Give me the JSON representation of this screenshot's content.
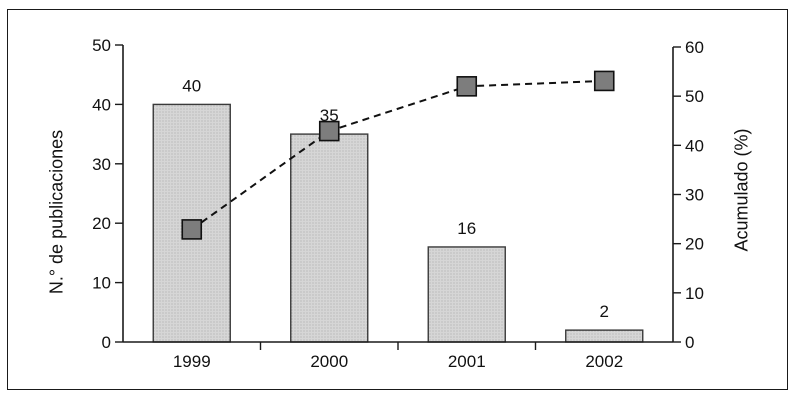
{
  "figure": {
    "background": "#ffffff",
    "frame_color": "#1a1a1a"
  },
  "chart_data": {
    "type": "bar",
    "subtype": "pareto-combo (bars + dashed cumulative line)",
    "title": "",
    "categories": [
      "1999",
      "2000",
      "2001",
      "2002"
    ],
    "series": [
      {
        "name": "N.° de publicaciones",
        "type": "bar",
        "axis": "left",
        "values": [
          40,
          35,
          16,
          2
        ],
        "data_labels": [
          "40",
          "35",
          "16",
          "2"
        ],
        "bar_fill": "#d6d6d6",
        "bar_dot": "#ababab",
        "bar_border": "#3a3a3a"
      },
      {
        "name": "Acumulado (%)",
        "type": "line",
        "axis": "right",
        "values": [
          22.9,
          42.9,
          52.0,
          53.1
        ],
        "line_style": "dashed",
        "line_color": "#111111",
        "marker": "square",
        "marker_fill": "#7d7d7d",
        "marker_border": "#111111"
      }
    ],
    "left_axis": {
      "label": "N.° de publicaciones",
      "min": 0,
      "max": 50,
      "ticks": [
        0,
        10,
        20,
        30,
        40,
        50
      ]
    },
    "right_axis": {
      "label": "Acumulado (%)",
      "min": 0,
      "max": 60,
      "ticks": [
        0,
        10,
        20,
        30,
        40,
        50,
        60
      ]
    },
    "x_axis": {
      "tick_marks_between_categories": true
    },
    "grid": false,
    "legend": false,
    "axis_color": "#1a1a1a",
    "text_color": "#111111"
  }
}
